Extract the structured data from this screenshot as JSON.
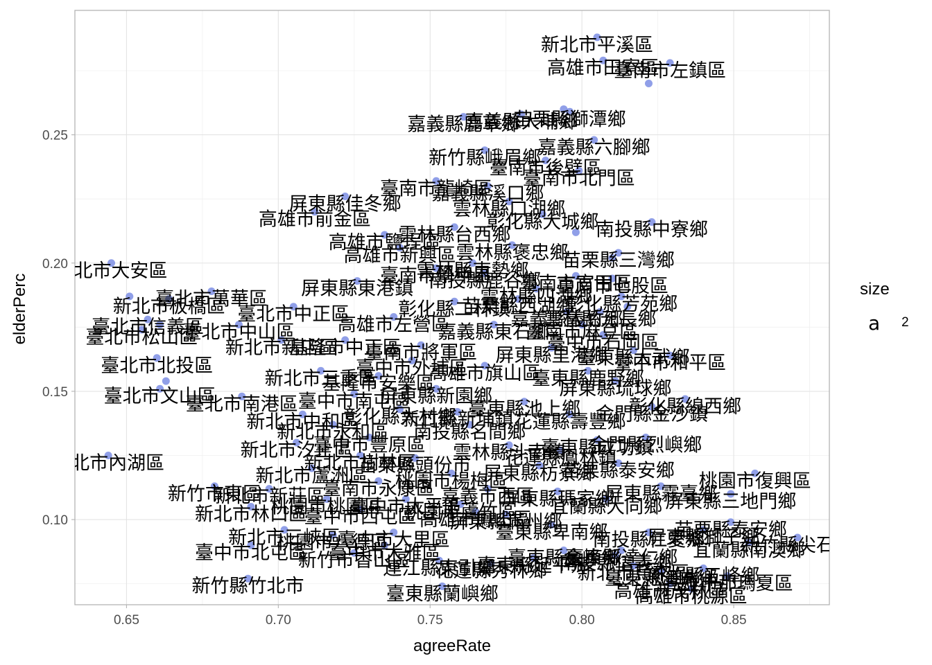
{
  "chart_data": {
    "type": "scatter",
    "title": "",
    "xlabel": "agreeRate",
    "ylabel": "elderPerc",
    "xlim": [
      0.633,
      0.8815
    ],
    "ylim": [
      0.0668,
      0.2985
    ],
    "x_ticks": [
      0.65,
      0.7,
      0.75,
      0.8,
      0.85
    ],
    "x_tick_labels": [
      "0.65",
      "0.70",
      "0.75",
      "0.80",
      "0.85"
    ],
    "y_ticks": [
      0.1,
      0.15,
      0.2,
      0.25
    ],
    "y_tick_labels": [
      "0.10",
      "0.15",
      "0.20",
      "0.25"
    ],
    "grid": true,
    "point_color": "#6b7fe0",
    "legend": {
      "title": "size",
      "key_symbol": "a",
      "value": "2",
      "position": "right"
    },
    "points": [
      {
        "x": 0.805,
        "y": 0.288,
        "label": "新北市平溪區"
      },
      {
        "x": 0.807,
        "y": 0.279,
        "label": "高雄市田寮區"
      },
      {
        "x": 0.829,
        "y": 0.278,
        "label": "臺南市左鎮區"
      },
      {
        "x": 0.822,
        "y": 0.27,
        "label": ""
      },
      {
        "x": 0.796,
        "y": 0.259,
        "label": "苗栗縣獅潭鄉"
      },
      {
        "x": 0.794,
        "y": 0.26,
        "label": ""
      },
      {
        "x": 0.761,
        "y": 0.257,
        "label": "嘉義縣鹿草鄉"
      },
      {
        "x": 0.78,
        "y": 0.258,
        "label": "嘉義縣大埔鄉"
      },
      {
        "x": 0.804,
        "y": 0.248,
        "label": "嘉義縣六腳鄉"
      },
      {
        "x": 0.768,
        "y": 0.244,
        "label": "新竹縣峨眉鄉"
      },
      {
        "x": 0.799,
        "y": 0.236,
        "label": "臺南市北門區"
      },
      {
        "x": 0.752,
        "y": 0.232,
        "label": "臺南市龍崎區"
      },
      {
        "x": 0.722,
        "y": 0.226,
        "label": "屏東縣佳冬鄉"
      },
      {
        "x": 0.776,
        "y": 0.224,
        "label": "雲林縣口湖鄉"
      },
      {
        "x": 0.712,
        "y": 0.22,
        "label": "高雄市前金區"
      },
      {
        "x": 0.823,
        "y": 0.216,
        "label": "南投縣中寮鄉"
      },
      {
        "x": 0.735,
        "y": 0.211,
        "label": "高雄市鹽埕區"
      },
      {
        "x": 0.798,
        "y": 0.212,
        "label": ""
      },
      {
        "x": 0.812,
        "y": 0.204,
        "label": "苗栗縣三灣鄉"
      },
      {
        "x": 0.74,
        "y": 0.206,
        "label": "高雄市新興區"
      },
      {
        "x": 0.81,
        "y": 0.202,
        "label": ""
      },
      {
        "x": 0.645,
        "y": 0.2,
        "label": "臺北市大安區"
      },
      {
        "x": 0.81,
        "y": 0.194,
        "label": "臺南市七股區"
      },
      {
        "x": 0.726,
        "y": 0.193,
        "label": "屏東縣東港鎮"
      },
      {
        "x": 0.678,
        "y": 0.189,
        "label": "臺北市萬華區"
      },
      {
        "x": 0.651,
        "y": 0.187,
        "label": ""
      },
      {
        "x": 0.813,
        "y": 0.187,
        "label": "彰化縣芳苑鄉"
      },
      {
        "x": 0.664,
        "y": 0.186,
        "label": "新北市板橋區"
      },
      {
        "x": 0.705,
        "y": 0.183,
        "label": "臺北市中正區"
      },
      {
        "x": 0.815,
        "y": 0.183,
        "label": ""
      },
      {
        "x": 0.8,
        "y": 0.176,
        "label": "臺南市麻豆區"
      },
      {
        "x": 0.657,
        "y": 0.178,
        "label": "臺北市信義區"
      },
      {
        "x": 0.687,
        "y": 0.176,
        "label": "臺北市中山區"
      },
      {
        "x": 0.661,
        "y": 0.176,
        "label": ""
      },
      {
        "x": 0.655,
        "y": 0.174,
        "label": "臺北市松山區"
      },
      {
        "x": 0.807,
        "y": 0.172,
        "label": "臺中市石岡區"
      },
      {
        "x": 0.829,
        "y": 0.164,
        "label": "臺中市和平區"
      },
      {
        "x": 0.701,
        "y": 0.17,
        "label": "新北市新店區"
      },
      {
        "x": 0.66,
        "y": 0.163,
        "label": "臺北市北投區"
      },
      {
        "x": 0.811,
        "y": 0.154,
        "label": "屏東縣琉球鄉"
      },
      {
        "x": 0.661,
        "y": 0.151,
        "label": "臺北市文山區"
      },
      {
        "x": 0.663,
        "y": 0.154,
        "label": ""
      },
      {
        "x": 0.688,
        "y": 0.148,
        "label": "臺北市南港區"
      },
      {
        "x": 0.834,
        "y": 0.147,
        "label": "彰化縣線西鄉"
      },
      {
        "x": 0.823,
        "y": 0.144,
        "label": "金門縣金沙鎮"
      },
      {
        "x": 0.821,
        "y": 0.132,
        "label": "金門縣烈嶼鄉"
      },
      {
        "x": 0.706,
        "y": 0.13,
        "label": "新北市汐止區"
      },
      {
        "x": 0.644,
        "y": 0.125,
        "label": "臺北市內湖區"
      },
      {
        "x": 0.812,
        "y": 0.122,
        "label": "苗栗縣泰安鄉"
      },
      {
        "x": 0.786,
        "y": 0.121,
        "label": "屏東縣枋寮鄉"
      },
      {
        "x": 0.857,
        "y": 0.118,
        "label": "桃園市復興區"
      },
      {
        "x": 0.826,
        "y": 0.113,
        "label": "屏東縣霧臺鄉"
      },
      {
        "x": 0.679,
        "y": 0.113,
        "label": "新竹市東區"
      },
      {
        "x": 0.792,
        "y": 0.111,
        "label": "屏東縣瑪家鄉"
      },
      {
        "x": 0.808,
        "y": 0.108,
        "label": "宜蘭縣大同鄉"
      },
      {
        "x": 0.849,
        "y": 0.11,
        "label": "屏東縣三地門鄉"
      },
      {
        "x": 0.691,
        "y": 0.105,
        "label": "新北市林口區"
      },
      {
        "x": 0.727,
        "y": 0.104,
        "label": "臺中市西屯區"
      },
      {
        "x": 0.765,
        "y": 0.103,
        "label": "高雄市鳳山區"
      },
      {
        "x": 0.822,
        "y": 0.095,
        "label": "南投縣仁愛鄉"
      },
      {
        "x": 0.84,
        "y": 0.096,
        "label": "屏東縣獅子鄉"
      },
      {
        "x": 0.849,
        "y": 0.099,
        "label": "苗栗縣泰安鄉"
      },
      {
        "x": 0.702,
        "y": 0.096,
        "label": "新北市三峽區"
      },
      {
        "x": 0.738,
        "y": 0.095,
        "label": "臺中市大里區"
      },
      {
        "x": 0.79,
        "y": 0.098,
        "label": "臺東縣卑南鄉"
      },
      {
        "x": 0.718,
        "y": 0.094,
        "label": "桃園市八德區"
      },
      {
        "x": 0.871,
        "y": 0.093,
        "label": "新竹縣尖石鄉"
      },
      {
        "x": 0.855,
        "y": 0.091,
        "label": "宜蘭縣南澳鄉"
      },
      {
        "x": 0.691,
        "y": 0.09,
        "label": "臺中市北屯區"
      },
      {
        "x": 0.735,
        "y": 0.09,
        "label": "臺中市大雅區"
      },
      {
        "x": 0.794,
        "y": 0.088,
        "label": "臺東縣金峰鄉"
      },
      {
        "x": 0.813,
        "y": 0.088,
        "label": "臺東縣達仁鄉"
      },
      {
        "x": 0.725,
        "y": 0.087,
        "label": "新竹市香山區"
      },
      {
        "x": 0.811,
        "y": 0.086,
        "label": "南投縣信義鄉"
      },
      {
        "x": 0.784,
        "y": 0.085,
        "label": "臺東縣延平鄉"
      },
      {
        "x": 0.753,
        "y": 0.084,
        "label": "連江縣東引鄉"
      },
      {
        "x": 0.77,
        "y": 0.083,
        "label": "花蓮縣秀林鄉"
      },
      {
        "x": 0.817,
        "y": 0.082,
        "label": "新北市烏來區"
      },
      {
        "x": 0.826,
        "y": 0.08,
        "label": "臺東縣海端鄉"
      },
      {
        "x": 0.84,
        "y": 0.081,
        "label": "新竹縣五峰鄉"
      },
      {
        "x": 0.848,
        "y": 0.078,
        "label": "高雄市那瑪夏區"
      },
      {
        "x": 0.69,
        "y": 0.077,
        "label": "新竹縣竹北市"
      },
      {
        "x": 0.754,
        "y": 0.074,
        "label": "臺東縣蘭嶼鄉"
      },
      {
        "x": 0.829,
        "y": 0.075,
        "label": "高雄市茂林區"
      },
      {
        "x": 0.836,
        "y": 0.073,
        "label": "高雄市桃源區"
      },
      {
        "x": 0.764,
        "y": 0.2,
        "label": "雲林縣東勢鄉"
      },
      {
        "x": 0.758,
        "y": 0.185,
        "label": "彰化縣二林鎮"
      },
      {
        "x": 0.771,
        "y": 0.176,
        "label": "嘉義縣東石鄉"
      },
      {
        "x": 0.747,
        "y": 0.168,
        "label": "臺南市將軍區"
      },
      {
        "x": 0.768,
        "y": 0.16,
        "label": "高雄市旗山區"
      },
      {
        "x": 0.752,
        "y": 0.151,
        "label": "屏東縣新園鄉"
      },
      {
        "x": 0.74,
        "y": 0.143,
        "label": "彰化縣大村鄉"
      },
      {
        "x": 0.763,
        "y": 0.137,
        "label": "南投縣名間鄉"
      },
      {
        "x": 0.73,
        "y": 0.132,
        "label": "臺中市豐原區"
      },
      {
        "x": 0.776,
        "y": 0.129,
        "label": "雲林縣斗南鎮"
      },
      {
        "x": 0.745,
        "y": 0.124,
        "label": "苗栗縣頭份市"
      },
      {
        "x": 0.757,
        "y": 0.118,
        "label": "桃園市楊梅區"
      },
      {
        "x": 0.769,
        "y": 0.112,
        "label": "嘉義市西區"
      },
      {
        "x": 0.733,
        "y": 0.115,
        "label": "臺南市永康區"
      },
      {
        "x": 0.781,
        "y": 0.146,
        "label": "臺東縣池上鄉"
      },
      {
        "x": 0.79,
        "y": 0.167,
        "label": "屏東縣里港鄉"
      },
      {
        "x": 0.785,
        "y": 0.19,
        "label": "雲林縣四湖鄉"
      },
      {
        "x": 0.752,
        "y": 0.198,
        "label": "臺南市學甲區"
      },
      {
        "x": 0.738,
        "y": 0.179,
        "label": "高雄市左營區"
      },
      {
        "x": 0.722,
        "y": 0.17,
        "label": "基隆市中正區"
      },
      {
        "x": 0.714,
        "y": 0.158,
        "label": "新北市三重區"
      },
      {
        "x": 0.725,
        "y": 0.149,
        "label": "臺中市南屯區"
      },
      {
        "x": 0.708,
        "y": 0.141,
        "label": "新北市中和區"
      },
      {
        "x": 0.718,
        "y": 0.137,
        "label": "新北市永和區"
      },
      {
        "x": 0.711,
        "y": 0.12,
        "label": "新北市蘆洲區"
      },
      {
        "x": 0.697,
        "y": 0.112,
        "label": "新北市新莊區"
      },
      {
        "x": 0.742,
        "y": 0.108,
        "label": "臺中市太平區"
      },
      {
        "x": 0.76,
        "y": 0.106,
        "label": "桃園市蘆竹區"
      },
      {
        "x": 0.775,
        "y": 0.102,
        "label": "屏東縣滿州鄉"
      },
      {
        "x": 0.796,
        "y": 0.141,
        "label": "花蓮縣壽豐鄉"
      },
      {
        "x": 0.802,
        "y": 0.158,
        "label": "臺東縣鹿野鄉"
      },
      {
        "x": 0.795,
        "y": 0.181,
        "label": "嘉義縣義竹鄉"
      },
      {
        "x": 0.777,
        "y": 0.207,
        "label": "雲林縣褒忠鄉"
      },
      {
        "x": 0.787,
        "y": 0.219,
        "label": "彰化縣大城鄉"
      },
      {
        "x": 0.769,
        "y": 0.23,
        "label": "嘉義縣溪口鄉"
      },
      {
        "x": 0.788,
        "y": 0.24,
        "label": "臺南市後壁區"
      },
      {
        "x": 0.758,
        "y": 0.214,
        "label": "雲林縣台西鄉"
      },
      {
        "x": 0.768,
        "y": 0.196,
        "label": "南投縣鹿谷鄉"
      },
      {
        "x": 0.779,
        "y": 0.186,
        "label": "苗栗縣西湖鄉"
      },
      {
        "x": 0.744,
        "y": 0.162,
        "label": "臺中市外埔區"
      },
      {
        "x": 0.733,
        "y": 0.156,
        "label": "基隆市安樂區"
      },
      {
        "x": 0.759,
        "y": 0.142,
        "label": "新竹縣新埔鎮"
      },
      {
        "x": 0.727,
        "y": 0.125,
        "label": "新北市樹林區"
      },
      {
        "x": 0.716,
        "y": 0.108,
        "label": "桃園市桃園區"
      },
      {
        "x": 0.805,
        "y": 0.131,
        "label": "臺東縣成功鎮"
      },
      {
        "x": 0.798,
        "y": 0.195,
        "label": "臺南市官田區"
      },
      {
        "x": 0.806,
        "y": 0.181,
        "label": "雲林縣元長鄉"
      },
      {
        "x": 0.817,
        "y": 0.166,
        "label": "臺東縣大武鄉"
      },
      {
        "x": 0.793,
        "y": 0.127,
        "label": "花蓮縣鳳林鎮"
      }
    ]
  }
}
